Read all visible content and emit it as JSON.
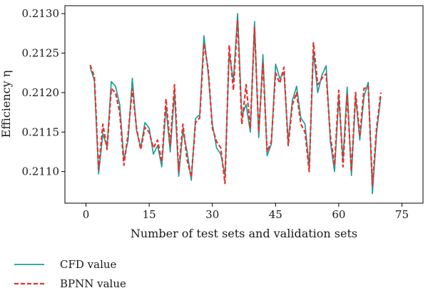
{
  "chart_data": {
    "type": "line",
    "title": "",
    "xlabel": "Number of test sets and validation sets",
    "ylabel": "Efficiency η",
    "xlim": [
      -5,
      80
    ],
    "ylim": [
      0.2106,
      0.2131
    ],
    "xticks": [
      0,
      15,
      30,
      45,
      60,
      75
    ],
    "xtick_labels": [
      "0",
      "15",
      "30",
      "45",
      "60",
      "75"
    ],
    "yticks": [
      0.211,
      0.2115,
      0.212,
      0.2125,
      0.213
    ],
    "ytick_labels": [
      "0.2110",
      "0.2115",
      "0.2120",
      "0.2125",
      "0.2130"
    ],
    "grid": false,
    "legend_position": "bottom-left",
    "x": [
      1,
      2,
      3,
      4,
      5,
      6,
      7,
      8,
      9,
      10,
      11,
      12,
      13,
      14,
      15,
      16,
      17,
      18,
      19,
      20,
      21,
      22,
      23,
      24,
      25,
      26,
      27,
      28,
      29,
      30,
      31,
      32,
      33,
      34,
      35,
      36,
      37,
      38,
      39,
      40,
      41,
      42,
      43,
      44,
      45,
      46,
      47,
      48,
      49,
      50,
      51,
      52,
      53,
      54,
      55,
      56,
      57,
      58,
      59,
      60,
      61,
      62,
      63,
      64,
      65,
      66,
      67,
      68,
      69,
      70
    ],
    "series": [
      {
        "name": "CFD value",
        "color": "#1f9e99",
        "dash": "solid",
        "values": [
          0.21232,
          0.21215,
          0.21097,
          0.21148,
          0.21131,
          0.21214,
          0.21208,
          0.21185,
          0.21115,
          0.2114,
          0.21218,
          0.21152,
          0.2113,
          0.21162,
          0.21155,
          0.21122,
          0.21133,
          0.21106,
          0.21182,
          0.21125,
          0.212,
          0.21094,
          0.21152,
          0.21125,
          0.21089,
          0.21167,
          0.21172,
          0.21272,
          0.21225,
          0.2116,
          0.2113,
          0.21122,
          0.21095,
          0.2125,
          0.21215,
          0.213,
          0.2117,
          0.21185,
          0.2115,
          0.2129,
          0.21143,
          0.21248,
          0.2112,
          0.21135,
          0.21236,
          0.21218,
          0.21225,
          0.21138,
          0.2119,
          0.21208,
          0.21168,
          0.2116,
          0.21105,
          0.21252,
          0.212,
          0.21222,
          0.21234,
          0.21138,
          0.211,
          0.21195,
          0.21115,
          0.21207,
          0.21095,
          0.21195,
          0.2114,
          0.21195,
          0.21213,
          0.21072,
          0.2115,
          0.21195
        ]
      },
      {
        "name": "BPNN value",
        "color": "#e8312a",
        "dash": "dashed",
        "values": [
          0.21235,
          0.2122,
          0.21103,
          0.2116,
          0.21128,
          0.21205,
          0.212,
          0.21175,
          0.21108,
          0.21148,
          0.21205,
          0.21155,
          0.21128,
          0.21156,
          0.2115,
          0.2113,
          0.2114,
          0.21112,
          0.21192,
          0.21133,
          0.2121,
          0.211,
          0.2116,
          0.21115,
          0.21093,
          0.21162,
          0.21168,
          0.21262,
          0.2123,
          0.21155,
          0.21138,
          0.2113,
          0.21085,
          0.2126,
          0.21203,
          0.21292,
          0.2116,
          0.2121,
          0.21155,
          0.21282,
          0.2115,
          0.21238,
          0.21125,
          0.21138,
          0.21225,
          0.21212,
          0.21232,
          0.21133,
          0.21185,
          0.212,
          0.2116,
          0.2115,
          0.211,
          0.21263,
          0.2121,
          0.21218,
          0.21224,
          0.21145,
          0.21108,
          0.21203,
          0.21106,
          0.21198,
          0.211,
          0.212,
          0.21145,
          0.21205,
          0.21208,
          0.21082,
          0.21156,
          0.212
        ]
      }
    ]
  }
}
